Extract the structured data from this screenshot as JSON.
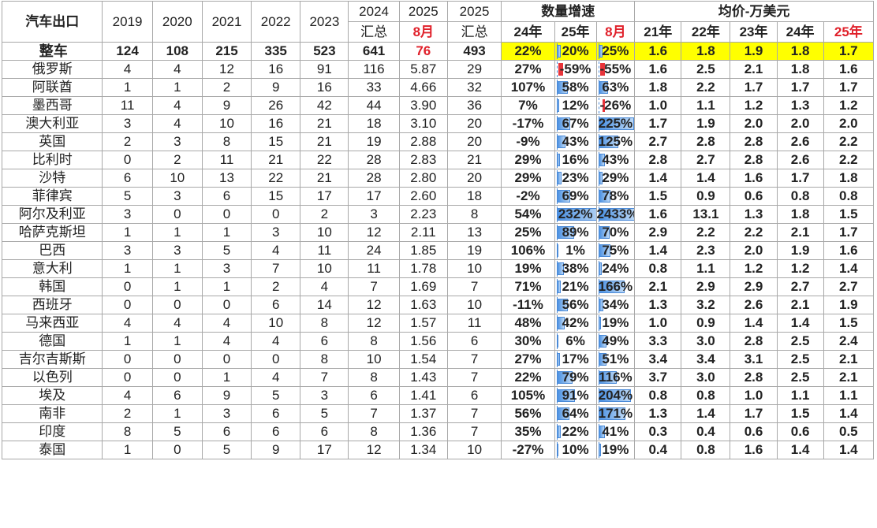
{
  "title": "汽车出口",
  "years": [
    "2019",
    "2020",
    "2021",
    "2022",
    "2023"
  ],
  "h2024": [
    "2024",
    "汇总"
  ],
  "h2025aug": [
    "2025",
    "8月"
  ],
  "h2025sum": [
    "2025",
    "汇总"
  ],
  "growth_title": "数量增速",
  "growth_cols": [
    "24年",
    "25年",
    "8月"
  ],
  "price_title": "均价-万美元",
  "price_cols": [
    "21年",
    "22年",
    "23年",
    "24年",
    "25年"
  ],
  "colors": {
    "accent_red": "#e0202a",
    "highlight": "#ffff00",
    "bar_blue": "#4a90e2",
    "bar_red": "#e8343a"
  },
  "rows": [
    {
      "name": "整车",
      "v": [
        "124",
        "108",
        "215",
        "335",
        "523",
        "641",
        "76",
        "493"
      ],
      "g": [
        "22%",
        "20%",
        "25%"
      ],
      "gn": [
        22,
        20,
        25
      ],
      "p": [
        "1.6",
        "1.8",
        "1.9",
        "1.8",
        "1.7"
      ]
    },
    {
      "name": "俄罗斯",
      "v": [
        "4",
        "4",
        "12",
        "16",
        "91",
        "116",
        "5.87",
        "29"
      ],
      "g": [
        "27%",
        "-59%",
        "-55%"
      ],
      "gn": [
        27,
        -59,
        -55
      ],
      "p": [
        "1.6",
        "2.5",
        "2.1",
        "1.8",
        "1.6"
      ]
    },
    {
      "name": "阿联酋",
      "v": [
        "1",
        "1",
        "2",
        "9",
        "16",
        "33",
        "4.66",
        "32"
      ],
      "g": [
        "107%",
        "58%",
        "63%"
      ],
      "gn": [
        107,
        58,
        63
      ],
      "p": [
        "1.8",
        "2.2",
        "1.7",
        "1.7",
        "1.7"
      ]
    },
    {
      "name": "墨西哥",
      "v": [
        "11",
        "4",
        "9",
        "26",
        "42",
        "44",
        "3.90",
        "36"
      ],
      "g": [
        "7%",
        "12%",
        "-26%"
      ],
      "gn": [
        7,
        12,
        -26
      ],
      "p": [
        "1.0",
        "1.1",
        "1.2",
        "1.3",
        "1.2"
      ]
    },
    {
      "name": "澳大利亚",
      "v": [
        "3",
        "4",
        "10",
        "16",
        "21",
        "18",
        "3.10",
        "20"
      ],
      "g": [
        "-17%",
        "67%",
        "225%"
      ],
      "gn": [
        -17,
        67,
        225
      ],
      "p": [
        "1.7",
        "1.9",
        "2.0",
        "2.0",
        "2.0"
      ]
    },
    {
      "name": "英国",
      "v": [
        "2",
        "3",
        "8",
        "15",
        "21",
        "19",
        "2.88",
        "20"
      ],
      "g": [
        "-9%",
        "43%",
        "125%"
      ],
      "gn": [
        -9,
        43,
        125
      ],
      "p": [
        "2.7",
        "2.8",
        "2.8",
        "2.6",
        "2.2"
      ]
    },
    {
      "name": "比利时",
      "v": [
        "0",
        "2",
        "11",
        "21",
        "22",
        "28",
        "2.83",
        "21"
      ],
      "g": [
        "29%",
        "16%",
        "43%"
      ],
      "gn": [
        29,
        16,
        43
      ],
      "p": [
        "2.8",
        "2.7",
        "2.8",
        "2.6",
        "2.2"
      ]
    },
    {
      "name": "沙特",
      "v": [
        "6",
        "10",
        "13",
        "22",
        "21",
        "28",
        "2.80",
        "20"
      ],
      "g": [
        "29%",
        "23%",
        "29%"
      ],
      "gn": [
        29,
        23,
        29
      ],
      "p": [
        "1.4",
        "1.4",
        "1.6",
        "1.7",
        "1.8"
      ]
    },
    {
      "name": "菲律宾",
      "v": [
        "5",
        "3",
        "6",
        "15",
        "17",
        "17",
        "2.60",
        "18"
      ],
      "g": [
        "-2%",
        "69%",
        "78%"
      ],
      "gn": [
        -2,
        69,
        78
      ],
      "p": [
        "1.5",
        "0.9",
        "0.6",
        "0.8",
        "0.8"
      ]
    },
    {
      "name": "阿尔及利亚",
      "v": [
        "3",
        "0",
        "0",
        "0",
        "2",
        "3",
        "2.23",
        "8"
      ],
      "g": [
        "54%",
        "232%",
        "2433%"
      ],
      "gn": [
        54,
        232,
        2433
      ],
      "p": [
        "1.6",
        "13.1",
        "1.3",
        "1.8",
        "1.5"
      ]
    },
    {
      "name": "哈萨克斯坦",
      "v": [
        "1",
        "1",
        "1",
        "3",
        "10",
        "12",
        "2.11",
        "13"
      ],
      "g": [
        "25%",
        "89%",
        "70%"
      ],
      "gn": [
        25,
        89,
        70
      ],
      "p": [
        "2.9",
        "2.2",
        "2.2",
        "2.1",
        "1.7"
      ]
    },
    {
      "name": "巴西",
      "v": [
        "3",
        "3",
        "5",
        "4",
        "11",
        "24",
        "1.85",
        "19"
      ],
      "g": [
        "106%",
        "1%",
        "75%"
      ],
      "gn": [
        106,
        1,
        75
      ],
      "p": [
        "1.4",
        "2.3",
        "2.0",
        "1.9",
        "1.6"
      ]
    },
    {
      "name": "意大利",
      "v": [
        "1",
        "1",
        "3",
        "7",
        "10",
        "11",
        "1.78",
        "10"
      ],
      "g": [
        "19%",
        "38%",
        "24%"
      ],
      "gn": [
        19,
        38,
        24
      ],
      "p": [
        "0.8",
        "1.1",
        "1.2",
        "1.2",
        "1.4"
      ]
    },
    {
      "name": "韩国",
      "v": [
        "0",
        "1",
        "1",
        "2",
        "4",
        "7",
        "1.69",
        "7"
      ],
      "g": [
        "71%",
        "21%",
        "166%"
      ],
      "gn": [
        71,
        21,
        166
      ],
      "p": [
        "2.1",
        "2.9",
        "2.9",
        "2.7",
        "2.7"
      ]
    },
    {
      "name": "西班牙",
      "v": [
        "0",
        "0",
        "0",
        "6",
        "14",
        "12",
        "1.63",
        "10"
      ],
      "g": [
        "-11%",
        "56%",
        "34%"
      ],
      "gn": [
        -11,
        56,
        34
      ],
      "p": [
        "1.3",
        "3.2",
        "2.6",
        "2.1",
        "1.9"
      ]
    },
    {
      "name": "马来西亚",
      "v": [
        "4",
        "4",
        "4",
        "10",
        "8",
        "12",
        "1.57",
        "11"
      ],
      "g": [
        "48%",
        "42%",
        "19%"
      ],
      "gn": [
        48,
        42,
        19
      ],
      "p": [
        "1.0",
        "0.9",
        "1.4",
        "1.4",
        "1.5"
      ]
    },
    {
      "name": "德国",
      "v": [
        "1",
        "1",
        "4",
        "4",
        "6",
        "8",
        "1.56",
        "6"
      ],
      "g": [
        "30%",
        "6%",
        "49%"
      ],
      "gn": [
        30,
        6,
        49
      ],
      "p": [
        "3.3",
        "3.0",
        "2.8",
        "2.5",
        "2.4"
      ]
    },
    {
      "name": "吉尔吉斯斯",
      "v": [
        "0",
        "0",
        "0",
        "0",
        "8",
        "10",
        "1.54",
        "7"
      ],
      "g": [
        "27%",
        "17%",
        "51%"
      ],
      "gn": [
        27,
        17,
        51
      ],
      "p": [
        "3.4",
        "3.4",
        "3.1",
        "2.5",
        "2.1"
      ]
    },
    {
      "name": "以色列",
      "v": [
        "0",
        "0",
        "1",
        "4",
        "7",
        "8",
        "1.43",
        "7"
      ],
      "g": [
        "22%",
        "79%",
        "116%"
      ],
      "gn": [
        22,
        79,
        116
      ],
      "p": [
        "3.7",
        "3.0",
        "2.8",
        "2.5",
        "2.1"
      ]
    },
    {
      "name": "埃及",
      "v": [
        "4",
        "6",
        "9",
        "5",
        "3",
        "6",
        "1.41",
        "6"
      ],
      "g": [
        "105%",
        "91%",
        "204%"
      ],
      "gn": [
        105,
        91,
        204
      ],
      "p": [
        "0.8",
        "0.8",
        "1.0",
        "1.1",
        "1.1"
      ]
    },
    {
      "name": "南非",
      "v": [
        "2",
        "1",
        "3",
        "6",
        "5",
        "7",
        "1.37",
        "7"
      ],
      "g": [
        "56%",
        "64%",
        "171%"
      ],
      "gn": [
        56,
        64,
        171
      ],
      "p": [
        "1.3",
        "1.4",
        "1.7",
        "1.5",
        "1.4"
      ]
    },
    {
      "name": "印度",
      "v": [
        "8",
        "5",
        "6",
        "6",
        "6",
        "8",
        "1.36",
        "7"
      ],
      "g": [
        "35%",
        "22%",
        "41%"
      ],
      "gn": [
        35,
        22,
        41
      ],
      "p": [
        "0.3",
        "0.4",
        "0.6",
        "0.6",
        "0.5"
      ]
    },
    {
      "name": "泰国",
      "v": [
        "1",
        "0",
        "5",
        "9",
        "17",
        "12",
        "1.34",
        "10"
      ],
      "g": [
        "-27%",
        "10%",
        "19%"
      ],
      "gn": [
        -27,
        10,
        19
      ],
      "p": [
        "0.4",
        "0.8",
        "1.6",
        "1.4",
        "1.4"
      ]
    }
  ]
}
